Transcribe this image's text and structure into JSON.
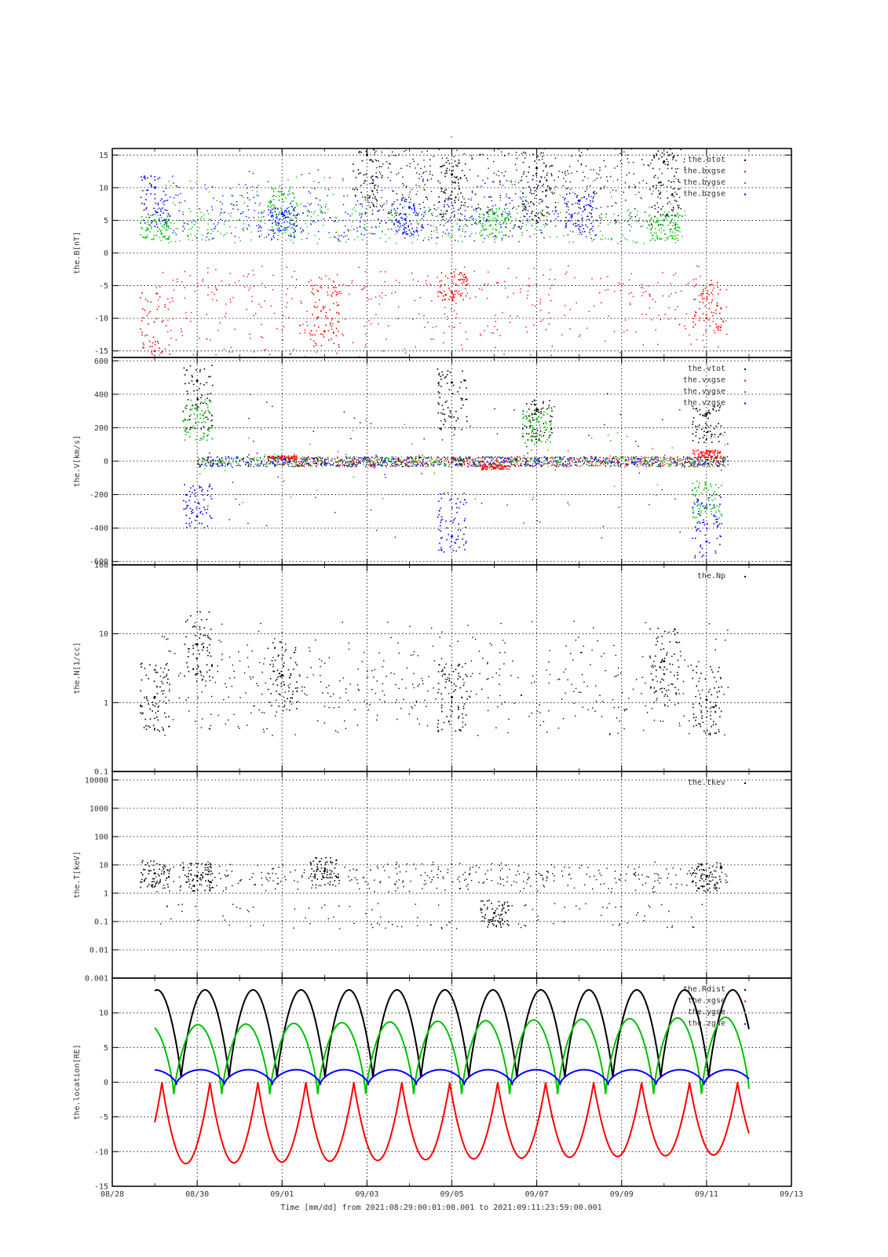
{
  "figure": {
    "top_mark": "-",
    "time_axis_label": "Time [mm/dd]  from 2021:08:29:00:01:00.001  to  2021:09:11:23:59:00.001"
  },
  "chart_data": [
    {
      "type": "scatter",
      "ylabel": "the.B[nT]",
      "ylim": [
        -16,
        16
      ],
      "yscale": "linear",
      "yticks": [
        15,
        10,
        5,
        0,
        -5,
        -10,
        -15
      ],
      "ytick_labels": [
        "15",
        "10",
        "5",
        "0",
        "-5",
        "-10",
        "-15"
      ],
      "xlim": [
        "2021-08-28",
        "2021-09-13"
      ],
      "grid": true,
      "legend": "top-right",
      "series": [
        {
          "name": "the.btot",
          "color": "#000000",
          "x": [
            "2021-09-03",
            "2021-09-05",
            "2021-09-07",
            "2021-09-10"
          ],
          "values": [
            15,
            12,
            13,
            14
          ]
        },
        {
          "name": "the.bxgse",
          "color": "#ff0000",
          "x": [
            "2021-08-29",
            "2021-09-02",
            "2021-09-05",
            "2021-09-11"
          ],
          "values": [
            -15,
            -12,
            -6,
            -10
          ]
        },
        {
          "name": "the.bygse",
          "color": "#00c000",
          "x": [
            "2021-08-29",
            "2021-09-01",
            "2021-09-06",
            "2021-09-10"
          ],
          "values": [
            5,
            9,
            6,
            5
          ]
        },
        {
          "name": "the.bzgse",
          "color": "#0000ff",
          "x": [
            "2021-08-29",
            "2021-09-01",
            "2021-09-04",
            "2021-09-08"
          ],
          "values": [
            10,
            6,
            7,
            8
          ]
        }
      ]
    },
    {
      "type": "scatter",
      "ylabel": "the.V[km/s]",
      "ylim": [
        -620,
        620
      ],
      "yscale": "linear",
      "yticks": [
        600,
        400,
        200,
        0,
        -200,
        -400,
        -600
      ],
      "ytick_labels": [
        "600",
        "400",
        "200",
        "0",
        "-200",
        "-400",
        "-600"
      ],
      "xlim": [
        "2021-08-28",
        "2021-09-13"
      ],
      "grid": true,
      "legend": "top-right",
      "series": [
        {
          "name": "the.vtot",
          "color": "#000000",
          "x": [
            "2021-08-30",
            "2021-09-05",
            "2021-09-07",
            "2021-09-11"
          ],
          "values": [
            480,
            470,
            310,
            280
          ]
        },
        {
          "name": "the.vxgse",
          "color": "#ff0000",
          "x": [
            "2021-09-01",
            "2021-09-06",
            "2021-09-11"
          ],
          "values": [
            30,
            -40,
            60
          ]
        },
        {
          "name": "the.vygse",
          "color": "#00c000",
          "x": [
            "2021-08-30",
            "2021-09-07",
            "2021-09-11"
          ],
          "values": [
            310,
            250,
            -280
          ]
        },
        {
          "name": "the.vzgse",
          "color": "#0000ff",
          "x": [
            "2021-08-30",
            "2021-09-05",
            "2021-09-11"
          ],
          "values": [
            -330,
            -450,
            -480
          ]
        }
      ]
    },
    {
      "type": "scatter",
      "ylabel": "the.N[1/cc]",
      "ylim": [
        0.1,
        100
      ],
      "yscale": "log",
      "yticks": [
        100,
        10,
        1,
        0.1
      ],
      "ytick_labels": [
        "100",
        "10",
        "1",
        "0.1"
      ],
      "xlim": [
        "2021-08-28",
        "2021-09-13"
      ],
      "grid": true,
      "legend": "top-right",
      "series": [
        {
          "name": "the.Np",
          "color": "#000000",
          "x": [
            "2021-08-29",
            "2021-08-30",
            "2021-09-01",
            "2021-09-05",
            "2021-09-10",
            "2021-09-11"
          ],
          "values": [
            1.2,
            7,
            2.5,
            1.2,
            4,
            1.1
          ]
        }
      ]
    },
    {
      "type": "scatter",
      "ylabel": "the.T[keV]",
      "ylim": [
        0.001,
        20000
      ],
      "yscale": "log",
      "yticks": [
        10000,
        1000,
        100,
        10,
        1,
        0.1,
        0.01,
        0.001
      ],
      "ytick_labels": [
        "10000",
        "1000",
        "100",
        "10",
        "1",
        "0.1",
        "0.01",
        "0.001"
      ],
      "xlim": [
        "2021-08-28",
        "2021-09-13"
      ],
      "grid": true,
      "legend": "top-right",
      "series": [
        {
          "name": "the.tkev",
          "color": "#000000",
          "x": [
            "2021-08-29",
            "2021-08-30",
            "2021-09-02",
            "2021-09-06",
            "2021-09-11"
          ],
          "values": [
            5,
            4,
            6,
            0.2,
            4
          ]
        }
      ]
    },
    {
      "type": "line",
      "ylabel": "the.location[RE]",
      "ylim": [
        -15,
        15
      ],
      "yscale": "linear",
      "yticks": [
        10,
        5,
        0,
        -5,
        -10,
        -15
      ],
      "ytick_labels": [
        "10",
        "5",
        "0",
        "-5",
        "-10",
        "-15"
      ],
      "xlim": [
        "2021-08-28",
        "2021-09-13"
      ],
      "grid": true,
      "legend": "top-right",
      "orbit_period_days": 1.13,
      "series": [
        {
          "name": "the.Rdist",
          "color": "#000000",
          "x": [
            "2021-08-29",
            "2021-08-29.5",
            "2021-08-30",
            "2021-08-30.7",
            "2021-08-31.1",
            "2021-09-05.5",
            "2021-09-11.5",
            "2021-09-12"
          ],
          "values": [
            6,
            13,
            0.5,
            13,
            1,
            13,
            0.5,
            13
          ]
        },
        {
          "name": "the.xgse",
          "color": "#ff0000",
          "x": [
            "2021-08-29",
            "2021-08-29.6",
            "2021-08-30",
            "2021-09-05.6",
            "2021-09-11",
            "2021-09-12"
          ],
          "values": [
            -2,
            -11.8,
            -0.2,
            -11,
            -10.5,
            -8.5
          ]
        },
        {
          "name": "the.ygse",
          "color": "#00c000",
          "x": [
            "2021-08-29",
            "2021-08-29.3",
            "2021-08-29.95",
            "2021-09-05.3",
            "2021-09-12"
          ],
          "values": [
            6,
            8,
            -2,
            8.7,
            9.3
          ]
        },
        {
          "name": "the.zgse",
          "color": "#0000ff",
          "x": [
            "2021-08-29",
            "2021-08-29.4",
            "2021-08-30",
            "2021-09-05.4",
            "2021-09-12"
          ],
          "values": [
            1.2,
            1.8,
            -0.3,
            1.8,
            1.8
          ]
        }
      ]
    }
  ],
  "x_axis": {
    "tick_dates": [
      "2021-08-28",
      "2021-08-30",
      "2021-09-01",
      "2021-09-03",
      "2021-09-05",
      "2021-09-07",
      "2021-09-09",
      "2021-09-11",
      "2021-09-13"
    ],
    "tick_labels": [
      "08/28",
      "08/30",
      "09/01",
      "09/03",
      "09/05",
      "09/07",
      "09/09",
      "09/11",
      "09/13"
    ]
  }
}
